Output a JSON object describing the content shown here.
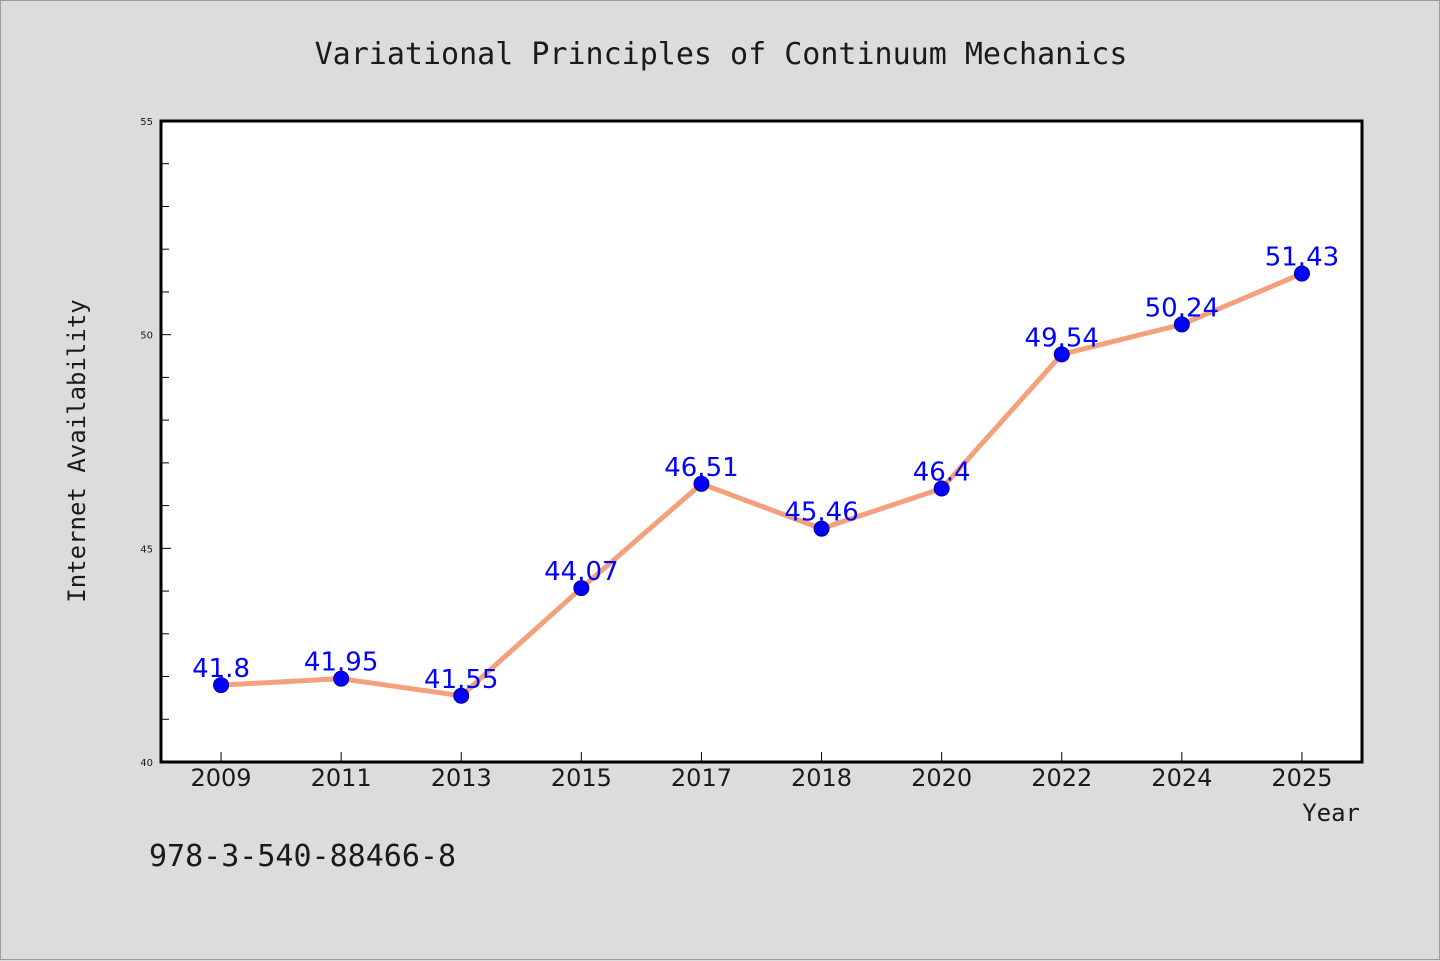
{
  "chart_data": {
    "type": "line",
    "title": "Variational Principles of Continuum Mechanics",
    "xlabel": "Year",
    "ylabel": "Internet Availability",
    "categories": [
      "2009",
      "2011",
      "2013",
      "2015",
      "2017",
      "2018",
      "2020",
      "2022",
      "2024",
      "2025"
    ],
    "series": [
      {
        "values": [
          41.8,
          41.95,
          41.55,
          44.07,
          46.51,
          45.46,
          46.4,
          49.54,
          50.24,
          51.43
        ],
        "labels": [
          "41.8",
          "41.95",
          "41.55",
          "44.07",
          "46.51",
          "45.46",
          "46.4",
          "49.54",
          "50.24",
          "51.43"
        ],
        "line_color": "#f4a07c",
        "marker_color": "#0000ff"
      }
    ],
    "ylim": [
      40,
      55
    ],
    "yticks": [
      "40",
      "45",
      "50",
      "55"
    ],
    "grid": false,
    "legend": "none"
  },
  "footer": {
    "isbn": "978-3-540-88466-8"
  },
  "colors": {
    "background": "#dcdcdc",
    "plot_background": "#ffffff",
    "line": "#f4a07c",
    "marker": "#0000ff",
    "data_label": "#0000ff"
  }
}
